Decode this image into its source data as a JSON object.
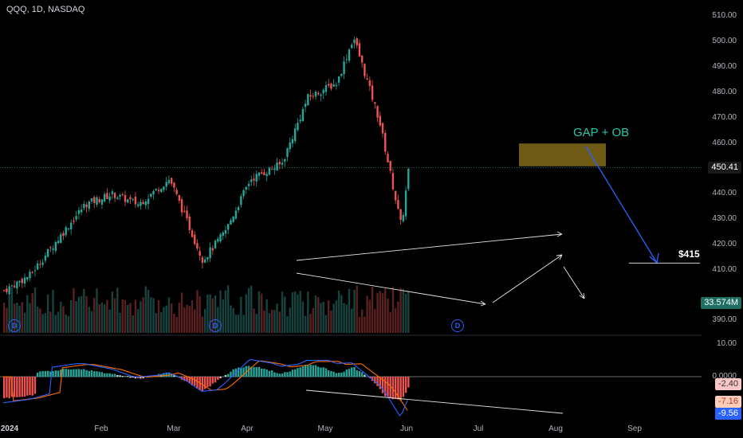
{
  "header": {
    "symbol": "QQQ, 1D, NASDAQ"
  },
  "price_axis": {
    "ticks": [
      "510.00",
      "500.00",
      "490.00",
      "480.00",
      "470.00",
      "460.00",
      "450.00",
      "440.00",
      "430.00",
      "420.00",
      "410.00",
      "400.00",
      "390.00"
    ],
    "last_price": "450.41",
    "volume_tag": "33.574M"
  },
  "macd_axis": {
    "ticks": [
      "10.00",
      "0.0000"
    ],
    "histogram_tag": "-2.40",
    "signal_tag": "-7.16",
    "macd_tag": "-9.56"
  },
  "time_axis": {
    "labels": [
      "2024",
      "Feb",
      "Mar",
      "Apr",
      "May",
      "Jun",
      "Jul",
      "Aug",
      "Sep"
    ]
  },
  "annotations": {
    "gap_ob": "GAP + OB",
    "target": "$415"
  },
  "dividend_marker": "D",
  "colors": {
    "up": "#26a69a",
    "down": "#ef5350",
    "macd": "#2962ff",
    "signal": "#ff6d00",
    "zone": "#c9a227",
    "arrow": "#2962ff"
  },
  "chart_data": {
    "type": "candlestick",
    "symbol": "QQQ",
    "interval": "1D",
    "price_range": [
      385,
      513
    ],
    "closes": [
      {
        "date": "2024-01-02",
        "close": 402
      },
      {
        "date": "2024-01-16",
        "close": 408
      },
      {
        "date": "2024-02-01",
        "close": 423
      },
      {
        "date": "2024-02-15",
        "close": 436
      },
      {
        "date": "2024-03-01",
        "close": 440
      },
      {
        "date": "2024-03-15",
        "close": 436
      },
      {
        "date": "2024-04-01",
        "close": 446
      },
      {
        "date": "2024-04-19",
        "close": 414
      },
      {
        "date": "2024-05-01",
        "close": 425
      },
      {
        "date": "2024-05-15",
        "close": 446
      },
      {
        "date": "2024-06-01",
        "close": 452
      },
      {
        "date": "2024-06-15",
        "close": 478
      },
      {
        "date": "2024-07-01",
        "close": 484
      },
      {
        "date": "2024-07-10",
        "close": 502
      },
      {
        "date": "2024-07-24",
        "close": 469
      },
      {
        "date": "2024-08-05",
        "close": 427
      },
      {
        "date": "2024-08-09",
        "close": 450.41
      }
    ],
    "volume_last": "33.574M",
    "macd": {
      "macd": -9.56,
      "signal": -7.16,
      "histogram": -2.4
    },
    "levels": {
      "zone_low": 451,
      "zone_high": 460,
      "target": 415
    },
    "annotations": [
      "GAP + OB",
      "$415"
    ]
  }
}
